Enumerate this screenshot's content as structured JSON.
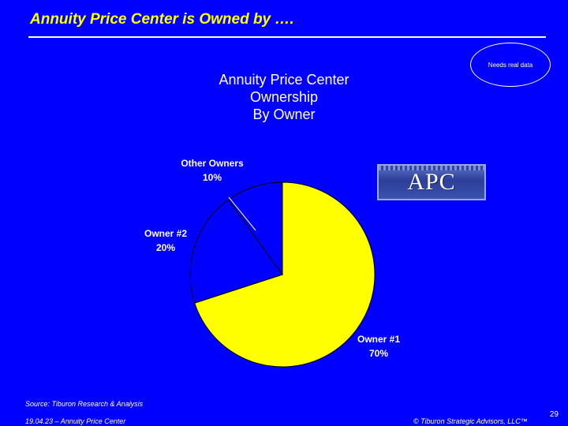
{
  "slide": {
    "title": "Annuity Price Center is Owned by ….",
    "note": "Needs real data",
    "logo_text": "APC",
    "source": "Source: Tiburon Research & Analysis",
    "footer_left": "19.04.23 – Annuity Price Center",
    "footer_right": "© Tiburon Strategic Advisors, LLC™",
    "page_number": "29"
  },
  "colors": {
    "background": "#0000FF",
    "title": "#FFFF00",
    "owner1": "#FFFF00",
    "owner2": "#0000FF",
    "other": "#0000FF",
    "outline": "#000000"
  },
  "chart_data": {
    "type": "pie",
    "title_lines": [
      "Annuity Price Center",
      "Ownership",
      "By Owner"
    ],
    "slices": [
      {
        "label": "Owner #1",
        "value": 70,
        "display": "70%",
        "color": "#FFFF00"
      },
      {
        "label": "Owner #2",
        "value": 20,
        "display": "20%",
        "color": "#0000FF"
      },
      {
        "label": "Other Owners",
        "value": 10,
        "display": "10%",
        "color": "#0000FF"
      }
    ]
  }
}
